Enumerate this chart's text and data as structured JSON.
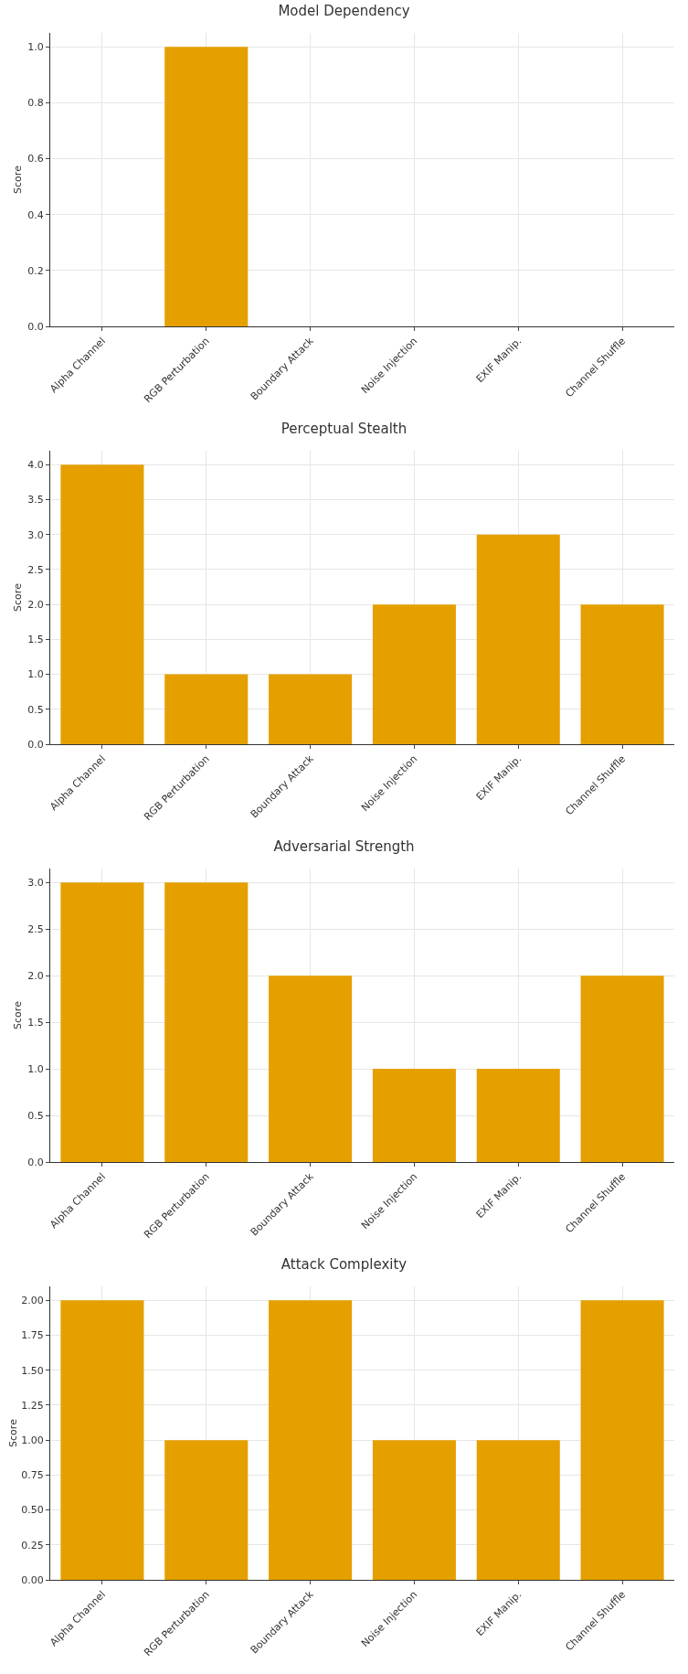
{
  "chart_data": [
    {
      "type": "bar",
      "title": "Model Dependency",
      "ylabel": "Score",
      "categories": [
        "Alpha Channel",
        "RGB Perturbation",
        "Boundary Attack",
        "Noise Injection",
        "EXIF Manip.",
        "Channel Shuffle"
      ],
      "values": [
        0,
        1,
        0,
        0,
        0,
        0
      ],
      "color": "#e5a000",
      "ylim": [
        0,
        1.05
      ],
      "yticks": [
        {
          "value": 0,
          "label": "0.0"
        },
        {
          "value": 0.2,
          "label": "0.2"
        },
        {
          "value": 0.4,
          "label": "0.4"
        },
        {
          "value": 0.6,
          "label": "0.6"
        },
        {
          "value": 0.8,
          "label": "0.8"
        },
        {
          "value": 1,
          "label": "1.0"
        }
      ],
      "grid": true
    },
    {
      "type": "bar",
      "title": "Perceptual Stealth",
      "ylabel": "Score",
      "categories": [
        "Alpha Channel",
        "RGB Perturbation",
        "Boundary Attack",
        "Noise Injection",
        "EXIF Manip.",
        "Channel Shuffle"
      ],
      "values": [
        4,
        1,
        1,
        2,
        3,
        2
      ],
      "color": "#e5a000",
      "ylim": [
        0,
        4.2
      ],
      "yticks": [
        {
          "value": 0,
          "label": "0.0"
        },
        {
          "value": 0.5,
          "label": "0.5"
        },
        {
          "value": 1,
          "label": "1.0"
        },
        {
          "value": 1.5,
          "label": "1.5"
        },
        {
          "value": 2,
          "label": "2.0"
        },
        {
          "value": 2.5,
          "label": "2.5"
        },
        {
          "value": 3,
          "label": "3.0"
        },
        {
          "value": 3.5,
          "label": "3.5"
        },
        {
          "value": 4,
          "label": "4.0"
        }
      ],
      "grid": true
    },
    {
      "type": "bar",
      "title": "Adversarial Strength",
      "ylabel": "Score",
      "categories": [
        "Alpha Channel",
        "RGB Perturbation",
        "Boundary Attack",
        "Noise Injection",
        "EXIF Manip.",
        "Channel Shuffle"
      ],
      "values": [
        3,
        3,
        2,
        1,
        1,
        2
      ],
      "color": "#e5a000",
      "ylim": [
        0,
        3.15
      ],
      "yticks": [
        {
          "value": 0,
          "label": "0.0"
        },
        {
          "value": 0.5,
          "label": "0.5"
        },
        {
          "value": 1,
          "label": "1.0"
        },
        {
          "value": 1.5,
          "label": "1.5"
        },
        {
          "value": 2,
          "label": "2.0"
        },
        {
          "value": 2.5,
          "label": "2.5"
        },
        {
          "value": 3,
          "label": "3.0"
        }
      ],
      "grid": true
    },
    {
      "type": "bar",
      "title": "Attack Complexity",
      "ylabel": "Score",
      "categories": [
        "Alpha Channel",
        "RGB Perturbation",
        "Boundary Attack",
        "Noise Injection",
        "EXIF Manip.",
        "Channel Shuffle"
      ],
      "values": [
        2,
        1,
        2,
        1,
        1,
        2
      ],
      "color": "#e5a000",
      "ylim": [
        0,
        2.1
      ],
      "yticks": [
        {
          "value": 0,
          "label": "0.00"
        },
        {
          "value": 0.25,
          "label": "0.25"
        },
        {
          "value": 0.5,
          "label": "0.50"
        },
        {
          "value": 0.75,
          "label": "0.75"
        },
        {
          "value": 1,
          "label": "1.00"
        },
        {
          "value": 1.25,
          "label": "1.25"
        },
        {
          "value": 1.5,
          "label": "1.50"
        },
        {
          "value": 1.75,
          "label": "1.75"
        },
        {
          "value": 2,
          "label": "2.00"
        }
      ],
      "grid": true
    }
  ]
}
